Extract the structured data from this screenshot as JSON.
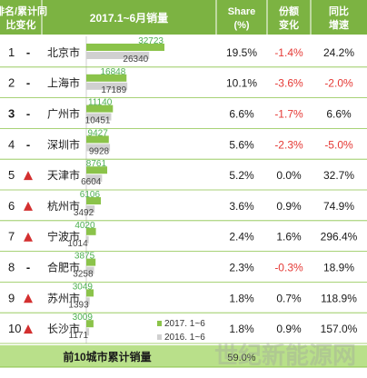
{
  "headers": {
    "rank_line1": "排名/累计同",
    "rank_line2": "比变化",
    "sales": "2017.1~6月销量",
    "share_line1": "Share",
    "share_line2": "(%)",
    "share_change_line1": "份额",
    "share_change_line2": "变化",
    "yoy_line1": "同比",
    "yoy_line2": "增速"
  },
  "rows": [
    {
      "rank": "1",
      "change": "-",
      "trend": "flat",
      "city": "北京市",
      "share": "19.5%",
      "share_change": "-1.4%",
      "share_change_negative": true,
      "yoy": "24.2%",
      "yoy_negative": false
    },
    {
      "rank": "2",
      "change": "-",
      "trend": "flat",
      "city": "上海市",
      "share": "10.1%",
      "share_change": "-3.6%",
      "share_change_negative": true,
      "yoy": "-2.0%",
      "yoy_negative": true
    },
    {
      "rank": "3",
      "change": "-",
      "trend": "flat",
      "city": "广州市",
      "share": "6.6%",
      "share_change": "-1.7%",
      "share_change_negative": true,
      "yoy": "6.6%",
      "yoy_negative": false
    },
    {
      "rank": "4",
      "change": "-",
      "trend": "flat",
      "city": "深圳市",
      "share": "5.6%",
      "share_change": "-2.3%",
      "share_change_negative": true,
      "yoy": "-5.0%",
      "yoy_negative": true
    },
    {
      "rank": "5",
      "change": "",
      "trend": "up",
      "city": "天津市",
      "share": "5.2%",
      "share_change": "0.0%",
      "share_change_negative": false,
      "yoy": "32.7%",
      "yoy_negative": false
    },
    {
      "rank": "6",
      "change": "",
      "trend": "up",
      "city": "杭州市",
      "share": "3.6%",
      "share_change": "0.9%",
      "share_change_negative": false,
      "yoy": "74.9%",
      "yoy_negative": false
    },
    {
      "rank": "7",
      "change": "",
      "trend": "up",
      "city": "宁波市",
      "share": "2.4%",
      "share_change": "1.6%",
      "share_change_negative": false,
      "yoy": "296.4%",
      "yoy_negative": false
    },
    {
      "rank": "8",
      "change": "-",
      "trend": "flat",
      "city": "合肥市",
      "share": "2.3%",
      "share_change": "-0.3%",
      "share_change_negative": true,
      "yoy": "18.9%",
      "yoy_negative": false
    },
    {
      "rank": "9",
      "change": "",
      "trend": "up",
      "city": "苏州市",
      "share": "1.8%",
      "share_change": "0.7%",
      "share_change_negative": false,
      "yoy": "118.9%",
      "yoy_negative": false
    },
    {
      "rank": "10",
      "change": "",
      "trend": "up",
      "city": "长沙市",
      "share": "1.8%",
      "share_change": "0.9%",
      "share_change_negative": false,
      "yoy": "157.0%",
      "yoy_negative": false
    }
  ],
  "footer": {
    "label": "前10城市累计销量",
    "share": "59.0%"
  },
  "watermark": "世纪新能源网",
  "colors": {
    "header_bg": "#7cb342",
    "header_text": "#ffffff",
    "series_2017": "#8bc34a",
    "series_2016": "#d0d0d0",
    "negative": "#e53935",
    "up_arrow": "#d32f2f",
    "footer_bg": "#b9e08a",
    "divider": "#8bc34a"
  },
  "chart_data": {
    "type": "bar",
    "orientation": "horizontal",
    "categories": [
      "北京市",
      "上海市",
      "广州市",
      "深圳市",
      "天津市",
      "杭州市",
      "宁波市",
      "合肥市",
      "苏州市",
      "长沙市"
    ],
    "series": [
      {
        "name": "2017. 1~6",
        "values": [
          32723,
          16848,
          11140,
          9427,
          8761,
          6106,
          4020,
          3875,
          3049,
          3009
        ]
      },
      {
        "name": "2016. 1~6",
        "values": [
          26340,
          17189,
          10451,
          9928,
          6604,
          3492,
          1014,
          3258,
          1393,
          1171
        ]
      }
    ],
    "title": "2017.1~6月销量",
    "legend_position": "bottom-right",
    "xlim": [
      0,
      32723
    ]
  }
}
